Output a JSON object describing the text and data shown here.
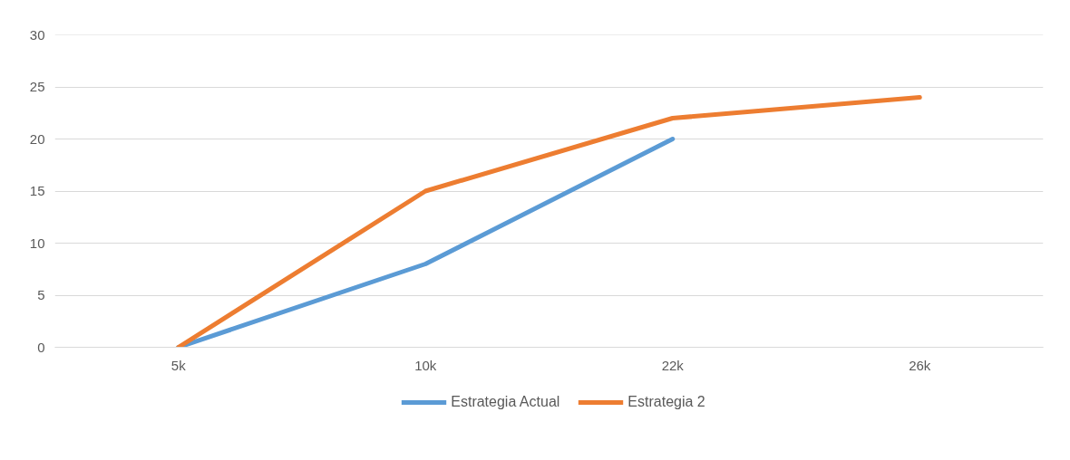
{
  "chart_data": {
    "type": "line",
    "categories": [
      "5k",
      "10k",
      "22k",
      "26k"
    ],
    "series": [
      {
        "name": "Estrategia Actual",
        "color": "#5b9bd5",
        "values": [
          0,
          8,
          20,
          null
        ]
      },
      {
        "name": "Estrategia 2",
        "color": "#ed7d31",
        "values": [
          0,
          15,
          22,
          24
        ]
      }
    ],
    "ylim": [
      0,
      30
    ],
    "yticks": [
      0,
      5,
      10,
      15,
      20,
      25,
      30
    ],
    "grid": "y",
    "legend": "bottom",
    "marker": "none",
    "line_style": "solid"
  }
}
